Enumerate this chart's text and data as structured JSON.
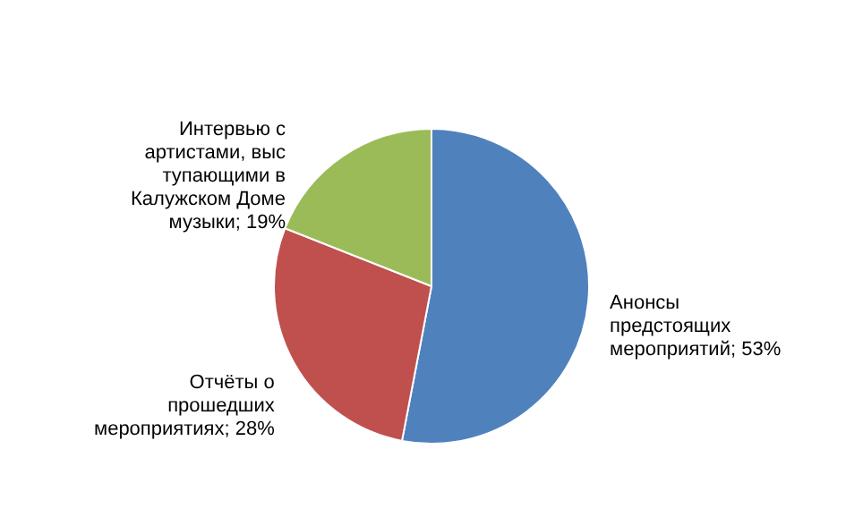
{
  "chart_data": {
    "type": "pie",
    "categories": [
      "Анонсы предстоящих мероприятий",
      "Отчёты о прошедших мероприятиях",
      "Интервью с артистами, выс тупающими в Калужском Доме музыки"
    ],
    "values": [
      53,
      28,
      19
    ],
    "value_labels": [
      "53%",
      "28%",
      "19%"
    ],
    "colors": [
      "#4f81bd",
      "#c0504d",
      "#9bbb59"
    ]
  }
}
